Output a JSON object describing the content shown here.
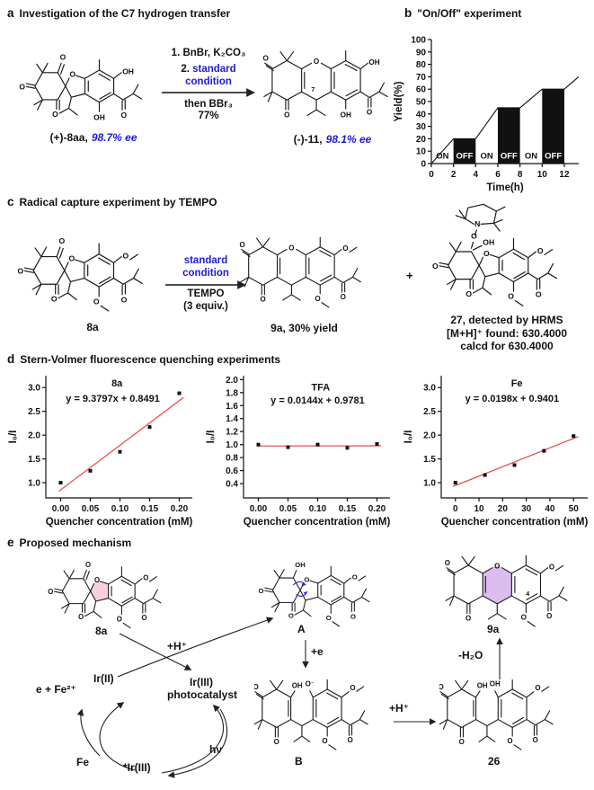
{
  "colors": {
    "blue": "#1c1cd0",
    "red": "#e8534f",
    "pink": "#f7d0df",
    "purple": "#ddbcee",
    "arrow_blue": "#2b2bd0",
    "bar_black": "#111111"
  },
  "atoms": {
    "O": "O",
    "OH": "OH",
    "N": "N",
    "O_minus": "O⁻"
  },
  "panels": {
    "a": {
      "label": "a",
      "title": "Investigation of the C7 hydrogen transfer",
      "reactant": {
        "name": "(+)-8aa,",
        "ee": "98.7% ee"
      },
      "cond1": "1. BnBr, K₂CO₃",
      "cond2_prefix": "2.",
      "cond2_blue": "standard",
      "cond3_blue": "condition",
      "cond4": "then BBr₃",
      "cond5": "77%",
      "product": {
        "name": "(-)-11,",
        "ee": "98.1% ee"
      },
      "position_label": "7"
    },
    "b": {
      "label": "b",
      "title": "\"On/Off\" experiment"
    },
    "c": {
      "label": "c",
      "title": "Radical capture experiment by TEMPO",
      "reactant_label": "8a",
      "cond1_blue": "standard",
      "cond2_blue": "condition",
      "cond3": "TEMPO",
      "cond4": "(3 equiv.)",
      "product1_label": "9a, 30% yield",
      "plus": "+",
      "product2_lines": [
        "27, detected by HRMS",
        "[M+H]⁺ found: 630.4000",
        "calcd for 630.4000"
      ]
    },
    "d": {
      "label": "d",
      "title": "Stern-Volmer fluorescence quenching experiments"
    },
    "e": {
      "label": "e",
      "title": "Proposed mechanism",
      "species": {
        "s8a": "8a",
        "A": "A",
        "s9a": "9a",
        "B": "B",
        "s26": "26"
      },
      "arrows": {
        "plusH1": "+H⁺",
        "plusE": "+e",
        "plusH2": "+H⁺",
        "minusH2O": "-H₂O"
      },
      "cycle": {
        "ir2": "Ir(II)",
        "ir3": "Ir(III)",
        "photocatalyst": "photocatalyst",
        "ir3star": "*Ir(III)",
        "hv": "hν",
        "fe": "Fe",
        "eFe": "e + Fe²⁺"
      },
      "position_label": "4"
    }
  },
  "chart_data": [
    {
      "id": "onoff",
      "type": "line+bar",
      "title": "\"On/Off\" experiment",
      "xlabel": "Time(h)",
      "ylabel": "Yield(%)",
      "xlim": [
        0,
        13.3
      ],
      "ylim": [
        0,
        100
      ],
      "xticks": [
        0,
        2,
        4,
        6,
        8,
        10,
        12
      ],
      "xtick_labels": [
        "0",
        "2",
        "4",
        "6",
        "8",
        "10",
        "12"
      ],
      "yticks": [
        0,
        10,
        20,
        30,
        40,
        50,
        60,
        70,
        80,
        90,
        100
      ],
      "ytick_labels": [
        "0",
        "10",
        "20",
        "30",
        "40",
        "50",
        "60",
        "70",
        "80",
        "90",
        "100"
      ],
      "line": [
        [
          0,
          0
        ],
        [
          2,
          20
        ],
        [
          4,
          20
        ],
        [
          6,
          45
        ],
        [
          8,
          45
        ],
        [
          10,
          60
        ],
        [
          12,
          60
        ],
        [
          13.3,
          70
        ]
      ],
      "bars": [
        {
          "from": 2,
          "to": 4,
          "height": 20
        },
        {
          "from": 6,
          "to": 8,
          "height": 45
        },
        {
          "from": 10,
          "to": 12,
          "height": 60
        }
      ],
      "segment_labels": [
        {
          "x": 1,
          "y": 4,
          "text": "ON",
          "color": "#111111"
        },
        {
          "x": 3,
          "y": 4,
          "text": "OFF",
          "color": "#ffffff"
        },
        {
          "x": 5,
          "y": 4,
          "text": "ON",
          "color": "#111111"
        },
        {
          "x": 7,
          "y": 4,
          "text": "OFF",
          "color": "#ffffff"
        },
        {
          "x": 9,
          "y": 4,
          "text": "ON",
          "color": "#111111"
        },
        {
          "x": 11,
          "y": 4,
          "text": "OFF",
          "color": "#ffffff"
        }
      ]
    },
    {
      "id": "sv-8a",
      "type": "scatter",
      "series_label": "8a",
      "equation": "y = 9.3797x + 0.8491",
      "xlabel": "Quencher concentration (mM)",
      "ylabel": "I₀/I",
      "xlim": [
        -0.025,
        0.222
      ],
      "ylim": [
        0.68,
        3.25
      ],
      "xticks": [
        0,
        0.05,
        0.1,
        0.15,
        0.2
      ],
      "xtick_labels": [
        "0.00",
        "0.05",
        "0.10",
        "0.15",
        "0.20"
      ],
      "yticks": [
        1,
        1.5,
        2,
        2.5,
        3
      ],
      "ytick_labels": [
        "1.0",
        "1.5",
        "2.0",
        "2.5",
        "3.0"
      ],
      "points": [
        [
          0,
          1.0
        ],
        [
          0.05,
          1.25
        ],
        [
          0.1,
          1.65
        ],
        [
          0.15,
          2.17
        ],
        [
          0.2,
          2.88
        ]
      ],
      "fit": {
        "slope": 9.3797,
        "intercept": 0.8491,
        "range": [
          -0.003,
          0.207
        ]
      },
      "annotations": [
        {
          "x": 0.095,
          "y": 3.02,
          "text": "8a"
        },
        {
          "x": 0.088,
          "y": 2.7,
          "text": "y = 9.3797x + 0.8491"
        }
      ]
    },
    {
      "id": "sv-tfa",
      "type": "scatter",
      "series_label": "TFA",
      "equation": "y = 0.0144x + 0.9781",
      "xlabel": "Quencher concentration (mM)",
      "ylabel": "I₀/I",
      "xlim": [
        -0.025,
        0.222
      ],
      "ylim": [
        0.18,
        2.06
      ],
      "xticks": [
        0,
        0.05,
        0.1,
        0.15,
        0.2
      ],
      "xtick_labels": [
        "0.00",
        "0.05",
        "0.10",
        "0.15",
        "0.20"
      ],
      "yticks": [
        0.4,
        0.6,
        0.8,
        1,
        1.2,
        1.4,
        1.6,
        1.8,
        2
      ],
      "ytick_labels": [
        "0.4",
        "0.6",
        "0.8",
        "1.0",
        "1.2",
        "1.4",
        "1.6",
        "1.8",
        "2.0"
      ],
      "points": [
        [
          0,
          1.0
        ],
        [
          0.05,
          0.96
        ],
        [
          0.1,
          1.0
        ],
        [
          0.15,
          0.95
        ],
        [
          0.2,
          1.01
        ]
      ],
      "fit": {
        "slope": 0.0144,
        "intercept": 0.9781,
        "range": [
          -0.003,
          0.207
        ]
      },
      "annotations": [
        {
          "x": 0.105,
          "y": 1.83,
          "text": "TFA"
        },
        {
          "x": 0.1,
          "y": 1.63,
          "text": "y = 0.0144x + 0.9781"
        }
      ]
    },
    {
      "id": "sv-fe",
      "type": "scatter",
      "series_label": "Fe",
      "equation": "y = 0.0198x + 0.9401",
      "xlabel": "Quencher concentration (mM)",
      "ylabel": "I₀/I",
      "xlim": [
        -6,
        56
      ],
      "ylim": [
        0.68,
        3.25
      ],
      "xticks": [
        0,
        10,
        20,
        30,
        40,
        50
      ],
      "xtick_labels": [
        "0",
        "10",
        "20",
        "30",
        "40",
        "50"
      ],
      "yticks": [
        1,
        1.5,
        2,
        2.5,
        3
      ],
      "ytick_labels": [
        "1.0",
        "1.5",
        "2.0",
        "2.5",
        "3.0"
      ],
      "points": [
        [
          0,
          1.0
        ],
        [
          12.5,
          1.16
        ],
        [
          25,
          1.37
        ],
        [
          37.5,
          1.67
        ],
        [
          50,
          1.98
        ]
      ],
      "fit": {
        "slope": 0.0198,
        "intercept": 0.9401,
        "range": [
          -1,
          52
        ]
      },
      "annotations": [
        {
          "x": 26,
          "y": 3.02,
          "text": "Fe"
        },
        {
          "x": 24,
          "y": 2.7,
          "text": "y = 0.0198x + 0.9401"
        }
      ]
    }
  ]
}
